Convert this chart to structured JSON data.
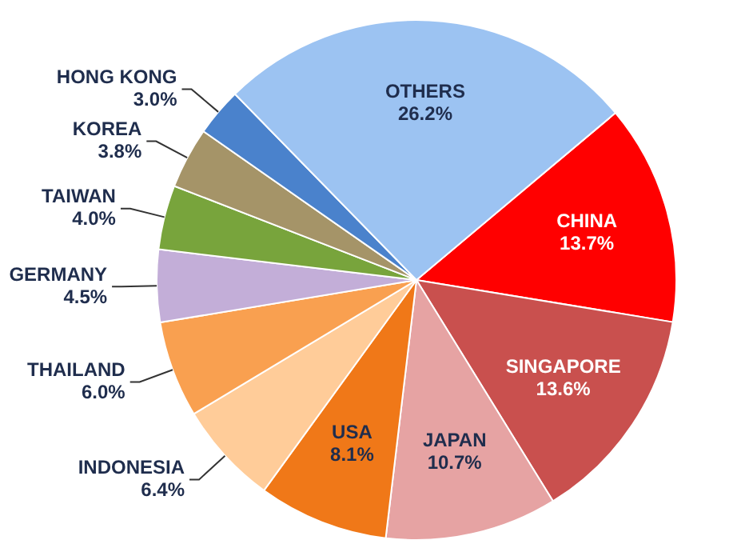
{
  "chart_data": {
    "type": "pie",
    "categories": [
      "CHINA",
      "SINGAPORE",
      "JAPAN",
      "USA",
      "INDONESIA",
      "THAILAND",
      "GERMANY",
      "TAIWAN",
      "KOREA",
      "HONG KONG",
      "OTHERS"
    ],
    "values": [
      13.7,
      13.6,
      10.7,
      8.1,
      6.4,
      6.0,
      4.5,
      4.0,
      3.8,
      3.0,
      26.2
    ],
    "value_labels": [
      "13.7%",
      "13.6%",
      "10.7%",
      "8.1%",
      "6.4%",
      "6.0%",
      "4.5%",
      "4.0%",
      "3.8%",
      "3.0%",
      "26.2%"
    ],
    "colors": [
      "#ff0000",
      "#c9504e",
      "#e6a3a3",
      "#f07818",
      "#ffcc99",
      "#f9a050",
      "#c3aed8",
      "#78a43c",
      "#a59468",
      "#4a82cc",
      "#9cc3f2"
    ],
    "legend": false
  }
}
